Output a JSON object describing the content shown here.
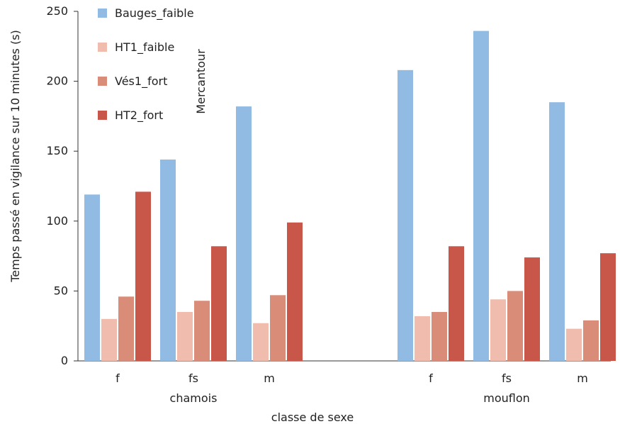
{
  "chart_data": {
    "type": "bar",
    "xlabel": "classe de sexe",
    "ylabel": "Temps passé en vigilance sur 10 minutes (s)",
    "ylim": [
      0,
      250
    ],
    "yticks": [
      "0",
      "50",
      "100",
      "150",
      "200",
      "250"
    ],
    "grid": false,
    "legend": {
      "position": "top-left",
      "items": [
        "Bauges_faible",
        "HT1_faible",
        "Vés1_fort",
        "HT2_fort"
      ]
    },
    "annotation": "Mercantour",
    "groups": [
      {
        "label": "chamois",
        "categories": [
          "f",
          "fs",
          "m"
        ],
        "series": [
          {
            "name": "Bauges_faible",
            "values": [
              119,
              144,
              182
            ]
          },
          {
            "name": "HT1_faible",
            "values": [
              30,
              35,
              27
            ]
          },
          {
            "name": "Vés1_fort",
            "values": [
              46,
              43,
              47
            ]
          },
          {
            "name": "HT2_fort",
            "values": [
              121,
              82,
              99
            ]
          }
        ]
      },
      {
        "label": "mouflon",
        "categories": [
          "f",
          "fs",
          "m"
        ],
        "series": [
          {
            "name": "Bauges_faible",
            "values": [
              208,
              236,
              185
            ]
          },
          {
            "name": "HT1_faible",
            "values": [
              32,
              44,
              23
            ]
          },
          {
            "name": "Vés1_fort",
            "values": [
              35,
              50,
              29
            ]
          },
          {
            "name": "HT2_fort",
            "values": [
              82,
              74,
              77
            ]
          }
        ]
      }
    ],
    "colors": [
      "#92bbe3",
      "#efbcae",
      "#d98c78",
      "#c8574a"
    ]
  }
}
